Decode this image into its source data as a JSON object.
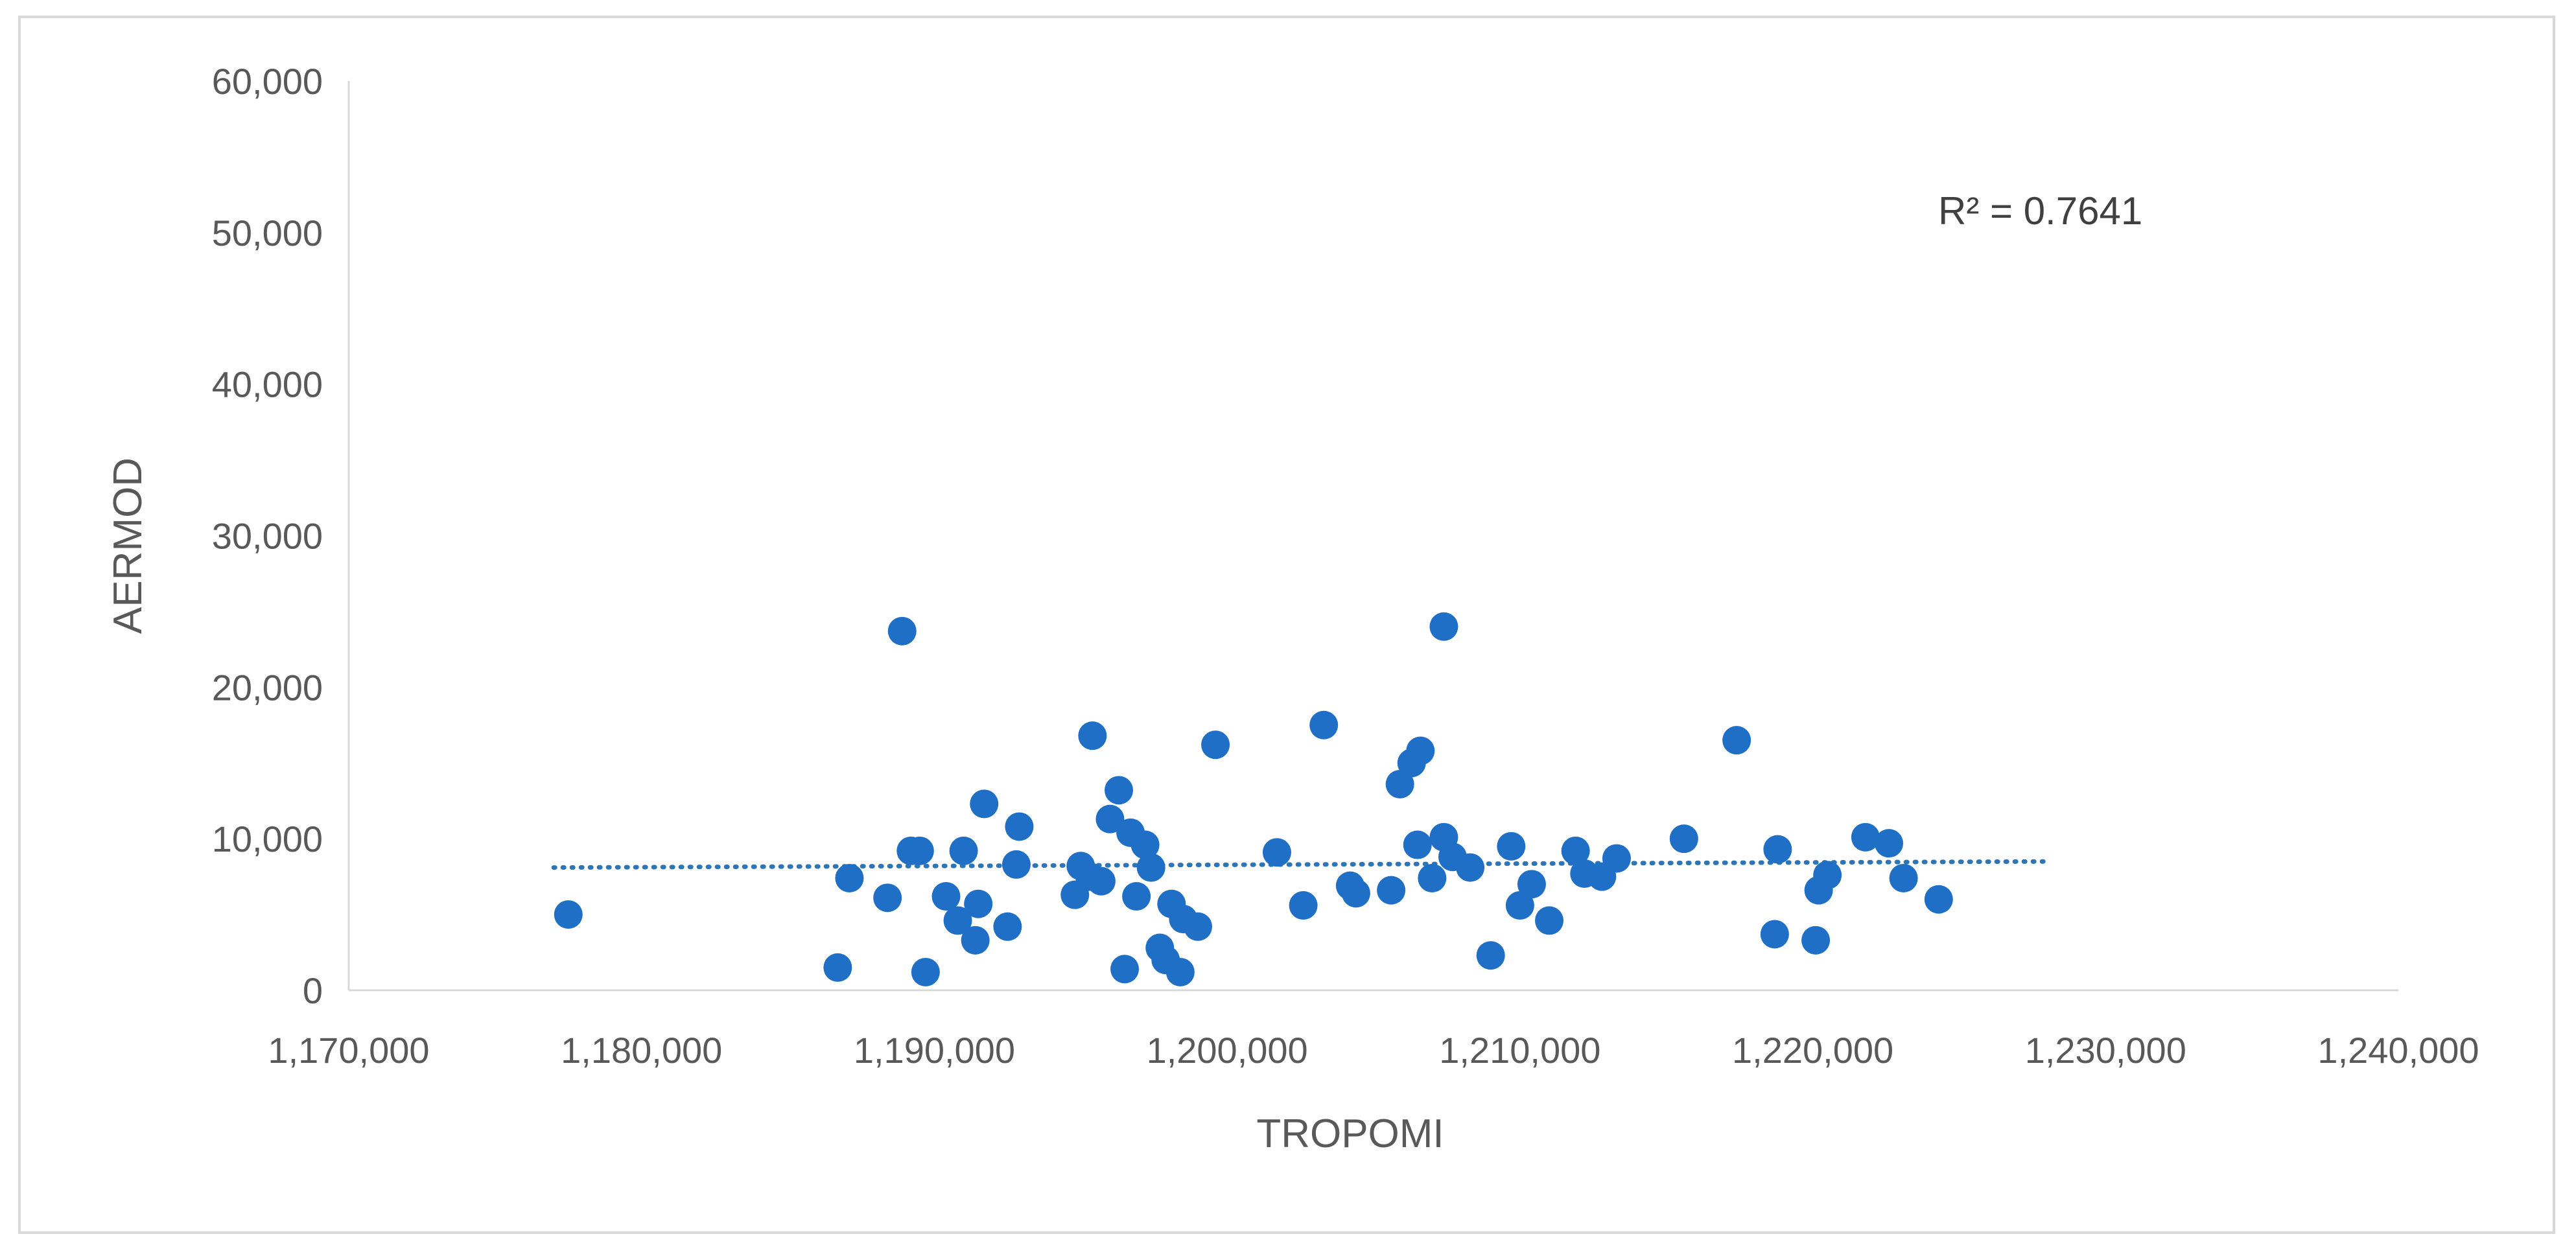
{
  "chart_data": {
    "type": "scatter",
    "title": "",
    "xlabel": "TROPOMI",
    "ylabel": "AERMOD",
    "xlim": [
      1170000,
      1240000
    ],
    "ylim": [
      0,
      60000
    ],
    "x_ticks": [
      1170000,
      1180000,
      1190000,
      1200000,
      1210000,
      1220000,
      1230000,
      1240000
    ],
    "x_tick_labels": [
      "1,170,000",
      "1,180,000",
      "1,190,000",
      "1,200,000",
      "1,210,000",
      "1,220,000",
      "1,230,000",
      "1,240,000"
    ],
    "y_ticks": [
      0,
      10000,
      20000,
      30000,
      40000,
      50000,
      60000
    ],
    "y_tick_labels": [
      "0",
      "10,000",
      "20,000",
      "30,000",
      "40,000",
      "50,000",
      "60,000"
    ],
    "grid": false,
    "legend": "none",
    "annotation": "R² = 0.7641",
    "marker_color": "#1f6fc6",
    "trendline": {
      "style": "dotted",
      "color": "#2e75b6",
      "x": [
        1177000,
        1228000
      ],
      "y": [
        8100,
        8500
      ]
    },
    "points": [
      [
        1177500,
        5000
      ],
      [
        1186700,
        1500
      ],
      [
        1187100,
        7400
      ],
      [
        1188400,
        6100
      ],
      [
        1188900,
        23700
      ],
      [
        1189200,
        9200
      ],
      [
        1189500,
        9200
      ],
      [
        1189700,
        1200
      ],
      [
        1190400,
        6200
      ],
      [
        1190800,
        4600
      ],
      [
        1191000,
        9200
      ],
      [
        1191400,
        3300
      ],
      [
        1191500,
        5700
      ],
      [
        1191700,
        12300
      ],
      [
        1192500,
        4200
      ],
      [
        1192800,
        8300
      ],
      [
        1192900,
        10800
      ],
      [
        1194800,
        6300
      ],
      [
        1195000,
        8200
      ],
      [
        1195300,
        7500
      ],
      [
        1195400,
        16800
      ],
      [
        1195700,
        7200
      ],
      [
        1196000,
        11300
      ],
      [
        1196300,
        13200
      ],
      [
        1196500,
        1400
      ],
      [
        1196700,
        10400
      ],
      [
        1196900,
        6200
      ],
      [
        1197200,
        9600
      ],
      [
        1197400,
        8100
      ],
      [
        1197700,
        2800
      ],
      [
        1197900,
        2000
      ],
      [
        1198100,
        5700
      ],
      [
        1198400,
        1200
      ],
      [
        1198500,
        4700
      ],
      [
        1199000,
        4200
      ],
      [
        1199600,
        16200
      ],
      [
        1201700,
        9100
      ],
      [
        1202600,
        5600
      ],
      [
        1203300,
        17500
      ],
      [
        1204200,
        6900
      ],
      [
        1204400,
        6400
      ],
      [
        1205600,
        6600
      ],
      [
        1205900,
        13600
      ],
      [
        1206300,
        15000
      ],
      [
        1206500,
        9600
      ],
      [
        1206600,
        15800
      ],
      [
        1207000,
        7400
      ],
      [
        1207400,
        10100
      ],
      [
        1207400,
        24000
      ],
      [
        1207700,
        8800
      ],
      [
        1208300,
        8100
      ],
      [
        1209000,
        2300
      ],
      [
        1209700,
        9500
      ],
      [
        1210000,
        5600
      ],
      [
        1210400,
        7000
      ],
      [
        1211000,
        4600
      ],
      [
        1211900,
        9200
      ],
      [
        1212200,
        7700
      ],
      [
        1212800,
        7500
      ],
      [
        1213300,
        8700
      ],
      [
        1215600,
        10000
      ],
      [
        1217400,
        16500
      ],
      [
        1218700,
        3700
      ],
      [
        1218800,
        9300
      ],
      [
        1220100,
        3300
      ],
      [
        1220200,
        6600
      ],
      [
        1220500,
        7600
      ],
      [
        1221800,
        10100
      ],
      [
        1222600,
        9700
      ],
      [
        1223100,
        7400
      ],
      [
        1224300,
        6000
      ]
    ]
  }
}
